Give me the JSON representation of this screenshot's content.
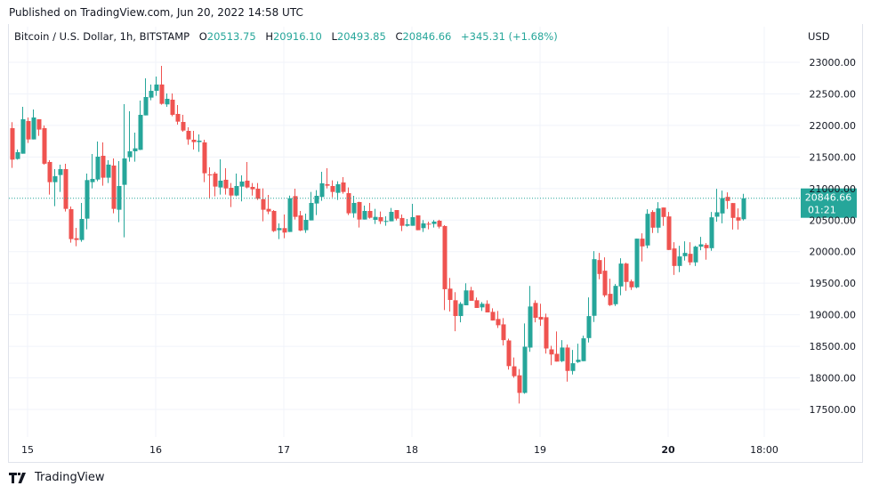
{
  "header": {
    "published": "Published on TradingView.com, Jun 20, 2022 14:58 UTC"
  },
  "legend": {
    "symbol": "Bitcoin / U.S. Dollar, 1h, BITSTAMP",
    "open_label": "O",
    "open": "20513.75",
    "high_label": "H",
    "high": "20916.10",
    "low_label": "L",
    "low": "20493.85",
    "close_label": "C",
    "close": "20846.66",
    "change": "+345.31 (+1.68%)"
  },
  "price_axis": {
    "currency": "USD"
  },
  "last_price": {
    "price": "20846.66",
    "countdown": "01:21"
  },
  "footer": {
    "brand": "TradingView"
  },
  "colors": {
    "up": "#26a69a",
    "down": "#ef5350",
    "grid": "#f0f3fa",
    "text": "#131722"
  },
  "chart_data": {
    "type": "candlestick",
    "interval": "1h",
    "x_start": "2022-06-14 21:00",
    "ylim": [
      17300,
      23400
    ],
    "grid": true,
    "y_ticks": [
      "17500.00",
      "18000.00",
      "18500.00",
      "19000.00",
      "19500.00",
      "20000.00",
      "20500.00",
      "21000.00",
      "21500.00",
      "22000.00",
      "22500.00",
      "23000.00"
    ],
    "x_ticks": [
      {
        "label": "15",
        "time": "2022-06-15 00:00",
        "bold": false
      },
      {
        "label": "16",
        "time": "2022-06-16 00:00",
        "bold": false
      },
      {
        "label": "17",
        "time": "2022-06-17 00:00",
        "bold": false
      },
      {
        "label": "18",
        "time": "2022-06-18 00:00",
        "bold": false
      },
      {
        "label": "19",
        "time": "2022-06-19 00:00",
        "bold": false
      },
      {
        "label": "20",
        "time": "2022-06-20 00:00",
        "bold": true
      },
      {
        "label": "18:00",
        "time": "2022-06-20 18:00",
        "bold": false
      }
    ],
    "last_price": 20846.66,
    "ohlc": [
      [
        21957,
        22051,
        21327,
        21458
      ],
      [
        21468,
        21618,
        21458,
        21576
      ],
      [
        21552,
        22295,
        21552,
        22098
      ],
      [
        22069,
        22126,
        21722,
        21778
      ],
      [
        21778,
        22253,
        21778,
        22126
      ],
      [
        22098,
        22098,
        21834,
        21934
      ],
      [
        21957,
        21999,
        21379,
        21393
      ],
      [
        21421,
        21449,
        20904,
        21101
      ],
      [
        21101,
        21308,
        20720,
        21195
      ],
      [
        21214,
        21379,
        20946,
        21308
      ],
      [
        21308,
        21393,
        20636,
        20678
      ],
      [
        20673,
        20716,
        20142,
        20199
      ],
      [
        20213,
        20377,
        20086,
        20185
      ],
      [
        20185,
        20772,
        20157,
        20518
      ],
      [
        20523,
        21238,
        20354,
        21134
      ],
      [
        21101,
        21548,
        21002,
        21153
      ],
      [
        21143,
        21745,
        21115,
        21505
      ],
      [
        21519,
        21731,
        21045,
        21172
      ],
      [
        21172,
        21449,
        21087,
        21379
      ],
      [
        21364,
        21477,
        20608,
        20678
      ],
      [
        20664,
        21435,
        20467,
        21040
      ],
      [
        21059,
        22337,
        20227,
        21477
      ],
      [
        21496,
        22224,
        21425,
        21590
      ],
      [
        21590,
        21886,
        21425,
        21637
      ],
      [
        21613,
        22394,
        21609,
        22168
      ],
      [
        22159,
        22746,
        22159,
        22450
      ],
      [
        22441,
        22648,
        22398,
        22548
      ],
      [
        22548,
        22774,
        22469,
        22648
      ],
      [
        22648,
        22944,
        22328,
        22342
      ],
      [
        22333,
        22506,
        22295,
        22422
      ],
      [
        22408,
        22506,
        22145,
        22168
      ],
      [
        22182,
        22323,
        22013,
        22060
      ],
      [
        22055,
        22168,
        21900,
        21919
      ],
      [
        21914,
        21971,
        21693,
        21778
      ],
      [
        21773,
        21914,
        21618,
        21736
      ],
      [
        21736,
        21858,
        21581,
        21759
      ],
      [
        21731,
        21773,
        21101,
        21242
      ],
      [
        21223,
        21336,
        20838,
        21209
      ],
      [
        21238,
        21266,
        20875,
        21031
      ],
      [
        21017,
        21463,
        20904,
        21125
      ],
      [
        21139,
        21322,
        20904,
        21002
      ],
      [
        21012,
        21087,
        20706,
        20889
      ],
      [
        20889,
        21238,
        20875,
        21040
      ],
      [
        21031,
        21209,
        20796,
        21111
      ],
      [
        21125,
        21421,
        21002,
        21017
      ],
      [
        21026,
        21087,
        20889,
        20988
      ],
      [
        20998,
        21087,
        20819,
        20838
      ],
      [
        20833,
        21002,
        20481,
        20664
      ],
      [
        20678,
        20899,
        20594,
        20636
      ],
      [
        20645,
        20659,
        20312,
        20326
      ],
      [
        20340,
        20448,
        20199,
        20373
      ],
      [
        20373,
        20589,
        20213,
        20302
      ],
      [
        20312,
        20889,
        20312,
        20847
      ],
      [
        20880,
        20998,
        20509,
        20551
      ],
      [
        20575,
        20645,
        20326,
        20335
      ],
      [
        20340,
        20603,
        20298,
        20504
      ],
      [
        20495,
        20946,
        20495,
        20772
      ],
      [
        20763,
        20974,
        20580,
        20885
      ],
      [
        20866,
        21266,
        20805,
        21083
      ],
      [
        21068,
        21322,
        21002,
        21045
      ],
      [
        21040,
        21129,
        20861,
        20946
      ],
      [
        20932,
        21115,
        20819,
        21068
      ],
      [
        21096,
        21181,
        20918,
        20946
      ],
      [
        20927,
        21017,
        20580,
        20608
      ],
      [
        20608,
        20885,
        20537,
        20772
      ],
      [
        20786,
        20791,
        20382,
        20509
      ],
      [
        20509,
        20730,
        20509,
        20645
      ],
      [
        20645,
        20772,
        20523,
        20537
      ],
      [
        20504,
        20678,
        20438,
        20551
      ],
      [
        20547,
        20636,
        20438,
        20481
      ],
      [
        20481,
        20561,
        20410,
        20486
      ],
      [
        20481,
        20692,
        20481,
        20631
      ],
      [
        20659,
        20659,
        20495,
        20523
      ],
      [
        20533,
        20589,
        20326,
        20410
      ],
      [
        20410,
        20518,
        20396,
        20434
      ],
      [
        20410,
        20758,
        20410,
        20547
      ],
      [
        20575,
        20575,
        20340,
        20340
      ],
      [
        20373,
        20500,
        20311,
        20448
      ],
      [
        20443,
        20476,
        20354,
        20429
      ],
      [
        20439,
        20500,
        20382,
        20476
      ],
      [
        20490,
        20505,
        20368,
        20396
      ],
      [
        20406,
        20420,
        19075,
        19405
      ],
      [
        19414,
        19584,
        19051,
        19235
      ],
      [
        19230,
        19358,
        18739,
        18980
      ],
      [
        18980,
        19202,
        18881,
        19174
      ],
      [
        19150,
        19499,
        19150,
        19386
      ],
      [
        19386,
        19443,
        19221,
        19221
      ],
      [
        19230,
        19273,
        19108,
        19108
      ],
      [
        19117,
        19202,
        19060,
        19174
      ],
      [
        19174,
        19230,
        19037,
        19037
      ],
      [
        19046,
        19103,
        18909,
        18909
      ],
      [
        18933,
        19060,
        18791,
        18834
      ],
      [
        18848,
        18947,
        18513,
        18598
      ],
      [
        18593,
        18621,
        18131,
        18187
      ],
      [
        18183,
        18324,
        18003,
        18027
      ],
      [
        18041,
        18140,
        17593,
        17762
      ],
      [
        17762,
        18862,
        17748,
        18494
      ],
      [
        18480,
        19457,
        18414,
        19131
      ],
      [
        19188,
        19230,
        18881,
        18952
      ],
      [
        18966,
        19174,
        18824,
        18924
      ],
      [
        18961,
        19018,
        18385,
        18466
      ],
      [
        18452,
        18508,
        18201,
        18371
      ],
      [
        18381,
        18735,
        18258,
        18258
      ],
      [
        18265,
        18598,
        18251,
        18481
      ],
      [
        18481,
        18528,
        17940,
        18110
      ],
      [
        18110,
        18443,
        18053,
        18232
      ],
      [
        18251,
        18542,
        18236,
        18288
      ],
      [
        18265,
        18669,
        18265,
        18627
      ],
      [
        18631,
        19275,
        18561,
        18979
      ],
      [
        18984,
        20008,
        18885,
        19881
      ],
      [
        19867,
        19980,
        19562,
        19646
      ],
      [
        19698,
        19910,
        19280,
        19308
      ],
      [
        19332,
        19571,
        19139,
        19153
      ],
      [
        19167,
        19487,
        19139,
        19458
      ],
      [
        19449,
        19896,
        19308,
        19811
      ],
      [
        19811,
        19825,
        19379,
        19520
      ],
      [
        19529,
        19557,
        19393,
        19435
      ],
      [
        19435,
        20206,
        19421,
        20206
      ],
      [
        20206,
        20290,
        19844,
        20083
      ],
      [
        20098,
        20671,
        20055,
        20600
      ],
      [
        20629,
        20657,
        20295,
        20380
      ],
      [
        20380,
        20784,
        20295,
        20685
      ],
      [
        20699,
        20699,
        20408,
        20549
      ],
      [
        20558,
        20629,
        20027,
        20027
      ],
      [
        20051,
        20149,
        19632,
        19773
      ],
      [
        19773,
        20093,
        19675,
        19924
      ],
      [
        19928,
        20163,
        19858,
        19980
      ],
      [
        19966,
        20149,
        19787,
        19830
      ],
      [
        19830,
        20093,
        19773,
        20079
      ],
      [
        20079,
        20234,
        20022,
        20116
      ],
      [
        20107,
        20135,
        19872,
        20055
      ],
      [
        20055,
        20629,
        20013,
        20544
      ],
      [
        20554,
        20995,
        20474,
        20624
      ],
      [
        20605,
        20967,
        20450,
        20850
      ],
      [
        20868,
        20939,
        20676,
        20803
      ],
      [
        20770,
        20770,
        20351,
        20535
      ],
      [
        20544,
        20685,
        20351,
        20492
      ],
      [
        20513.75,
        20916.1,
        20493.85,
        20846.66
      ]
    ]
  }
}
